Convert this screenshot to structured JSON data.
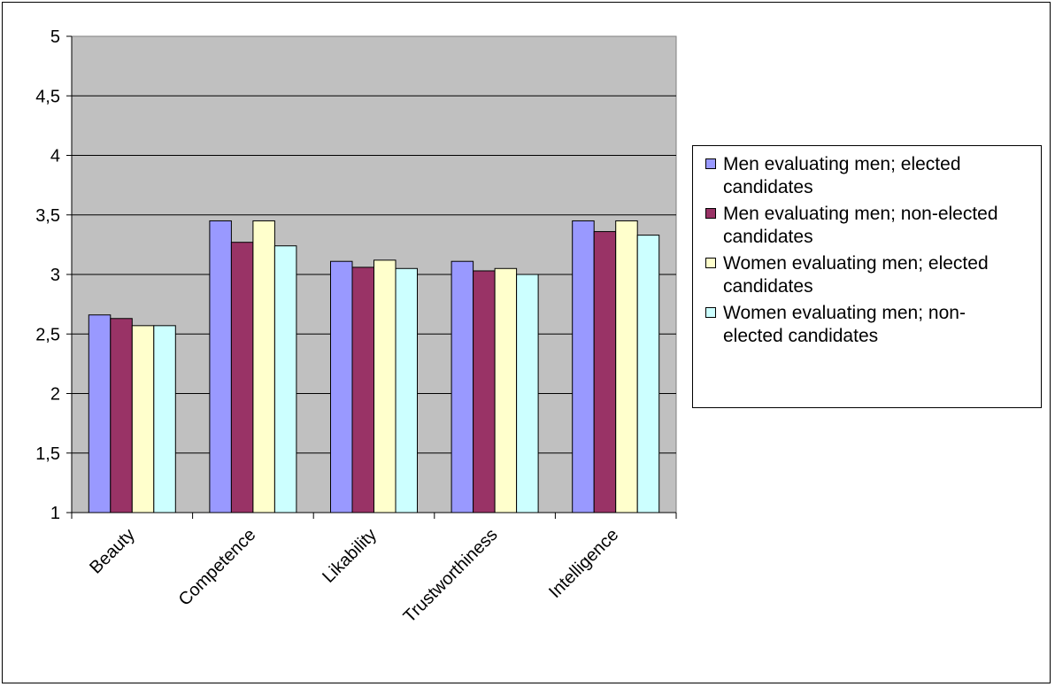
{
  "chart_data": {
    "type": "bar",
    "categories": [
      "Beauty",
      "Competence",
      "Likability",
      "Trustworthiness",
      "Intelligence"
    ],
    "series": [
      {
        "name": "Men evaluating men; elected candidates",
        "color": "#9999ff",
        "values": [
          2.66,
          3.45,
          3.11,
          3.11,
          3.45
        ]
      },
      {
        "name": "Men evaluating men; non-elected candidates",
        "color": "#993366",
        "values": [
          2.63,
          3.27,
          3.06,
          3.03,
          3.36
        ]
      },
      {
        "name": "Women evaluating men; elected candidates",
        "color": "#ffffcc",
        "values": [
          2.57,
          3.45,
          3.12,
          3.05,
          3.45
        ]
      },
      {
        "name": "Women evaluating men; non-elected candidates",
        "color": "#ccffff",
        "values": [
          2.57,
          3.24,
          3.05,
          3.0,
          3.33
        ]
      }
    ],
    "yticks": [
      "1",
      "1,5",
      "2",
      "2,5",
      "3",
      "3,5",
      "4",
      "4,5",
      "5"
    ],
    "ylim": [
      1,
      5
    ],
    "grid": true,
    "plot_background": "#c0c0c0",
    "legend_position": "right"
  }
}
